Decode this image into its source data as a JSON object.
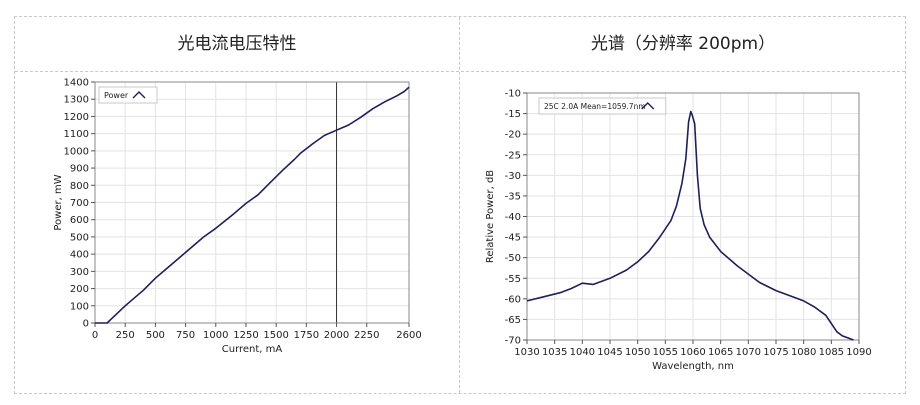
{
  "table": {
    "left_header": "光电流电压特性",
    "right_header": "光谱（分辨率 200pm）"
  },
  "chart_data": [
    {
      "type": "line",
      "title": "",
      "xlabel": "Current, mA",
      "ylabel": "Power, mW",
      "xlim": [
        0,
        2600
      ],
      "ylim": [
        0,
        1400
      ],
      "xticks": [
        0,
        250,
        500,
        750,
        1000,
        1250,
        1500,
        1750,
        2000,
        2250,
        2600
      ],
      "yticks": [
        0,
        100,
        200,
        300,
        400,
        500,
        600,
        700,
        800,
        900,
        1000,
        1100,
        1200,
        1300,
        1400
      ],
      "grid": true,
      "legend_position": "top-left",
      "marker_line_x": 2000,
      "series": [
        {
          "name": "Power",
          "color": "#1f1f5c",
          "x": [
            0,
            100,
            130,
            250,
            400,
            500,
            600,
            750,
            900,
            1000,
            1150,
            1250,
            1350,
            1450,
            1550,
            1650,
            1700,
            1800,
            1900,
            2000,
            2100,
            2200,
            2300,
            2400,
            2500,
            2560,
            2600
          ],
          "y": [
            0,
            0,
            20,
            100,
            190,
            260,
            320,
            410,
            500,
            550,
            635,
            695,
            745,
            815,
            885,
            950,
            985,
            1040,
            1090,
            1120,
            1150,
            1195,
            1245,
            1285,
            1320,
            1345,
            1370
          ]
        }
      ]
    },
    {
      "type": "line",
      "title": "",
      "xlabel": "Wavelength, nm",
      "ylabel": "Relative Power, dB",
      "xlim": [
        1030,
        1090
      ],
      "ylim": [
        -70,
        -10
      ],
      "xticks": [
        1030,
        1035,
        1040,
        1045,
        1050,
        1055,
        1060,
        1065,
        1070,
        1075,
        1080,
        1085,
        1090
      ],
      "yticks": [
        -10,
        -15,
        -20,
        -25,
        -30,
        -35,
        -40,
        -45,
        -50,
        -55,
        -60,
        -65,
        -70
      ],
      "grid": true,
      "legend_position": "top-left",
      "series": [
        {
          "name": "25C 2.0A Mean=1059.7nm",
          "color": "#1f1f5c",
          "x": [
            1030,
            1033,
            1036,
            1038,
            1040,
            1042,
            1045,
            1048,
            1050,
            1052,
            1054,
            1056,
            1057,
            1058,
            1058.7,
            1059.2,
            1059.6,
            1059.9,
            1060.3,
            1060.8,
            1061.3,
            1062,
            1063,
            1065,
            1068,
            1072,
            1075,
            1078,
            1080,
            1082,
            1084,
            1085,
            1086,
            1087,
            1088,
            1089
          ],
          "y": [
            -60.5,
            -59.5,
            -58.5,
            -57.5,
            -56.2,
            -56.5,
            -55,
            -53,
            -51,
            -48.5,
            -45,
            -41,
            -37.5,
            -32,
            -26,
            -17,
            -14.5,
            -15.5,
            -17.5,
            -30,
            -38,
            -42,
            -45,
            -48.5,
            -52,
            -56,
            -58,
            -59.5,
            -60.5,
            -62,
            -64,
            -66,
            -68,
            -69,
            -69.5,
            -70
          ]
        }
      ]
    }
  ]
}
